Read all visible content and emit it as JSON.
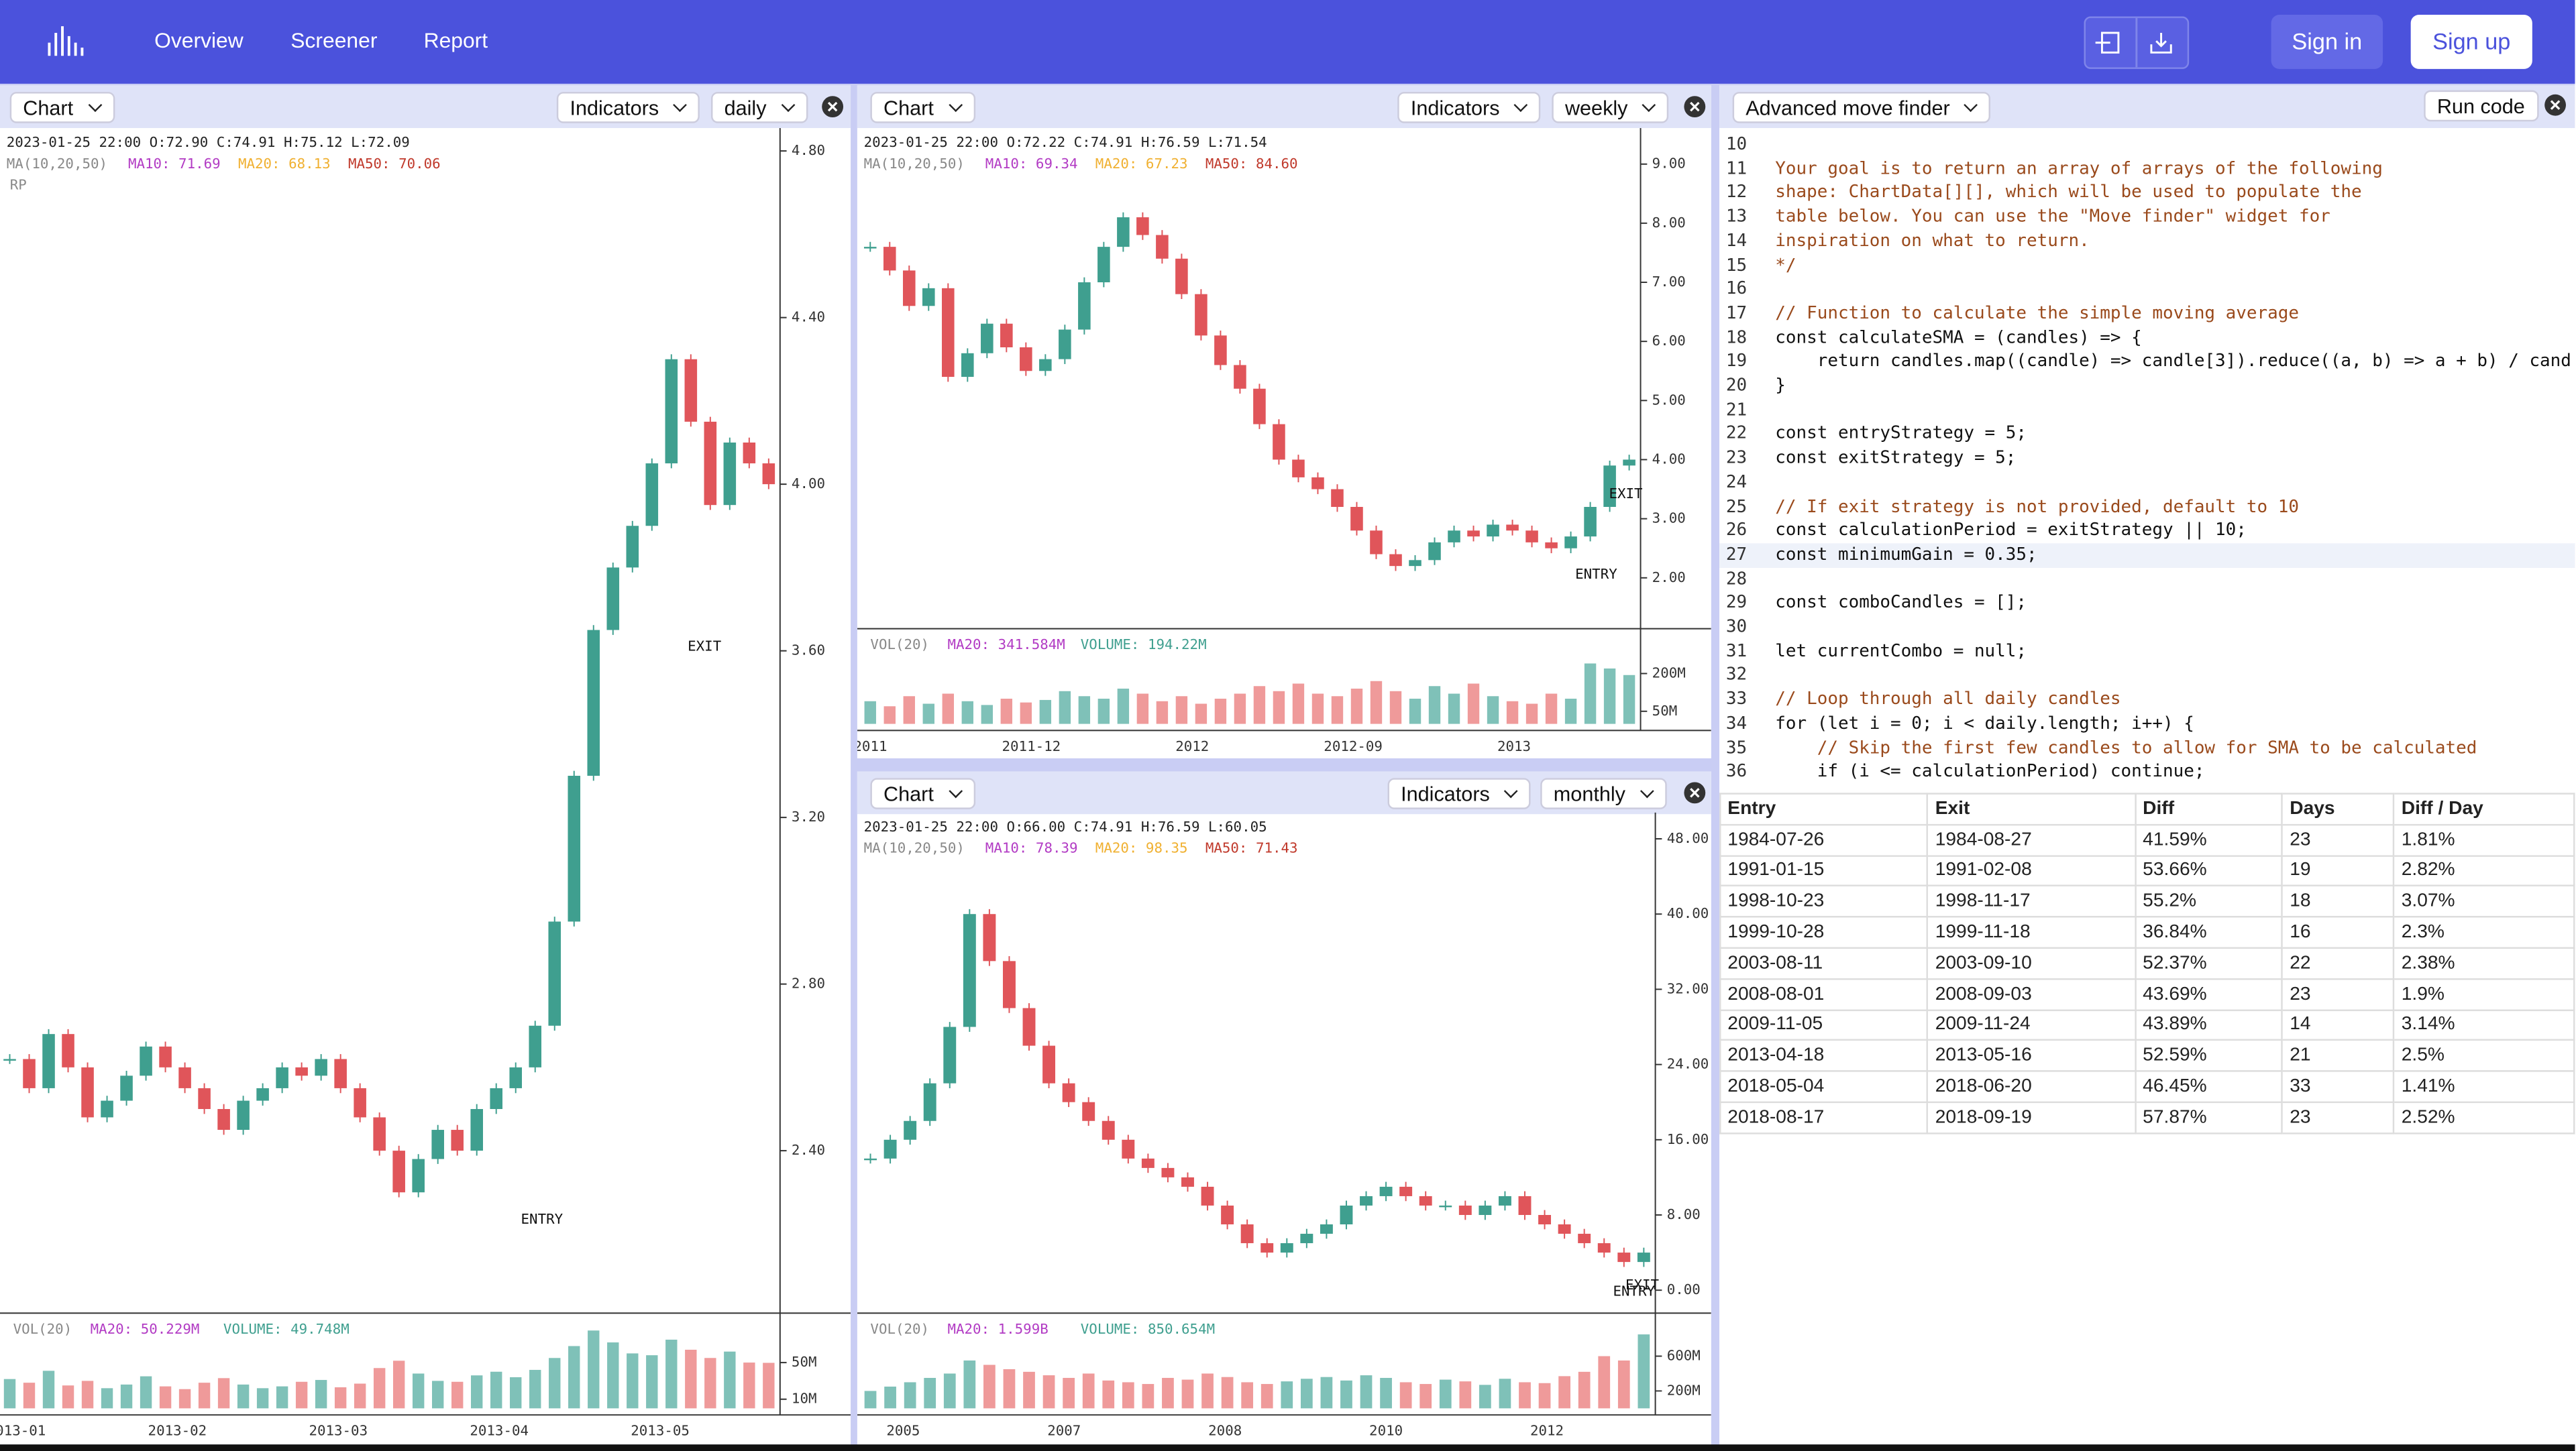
{
  "nav": {
    "items": [
      "Overview",
      "Screener",
      "Report"
    ],
    "sign_in": "Sign in",
    "sign_up": "Sign up"
  },
  "panels": [
    {
      "chart": "Chart",
      "indicators": "Indicators",
      "interval": "daily",
      "info": "2023-01-25 22:00  O:72.90  C:74.91  H:75.12  L:72.09",
      "ma": "MA(10,20,50)",
      "ma10": "MA10: 71.69",
      "ma20": "MA20: 68.13",
      "ma50": "MA50: 70.06",
      "extra": "RP",
      "ylim": [
        2.01,
        4.855
      ],
      "yticks": [
        {
          "value": 4.8,
          "label": "4.80"
        },
        {
          "value": 4.4,
          "label": "4.40"
        },
        {
          "value": 4.0,
          "label": "4.00"
        },
        {
          "value": 3.6,
          "label": "3.60"
        },
        {
          "value": 3.2,
          "label": "3.20"
        },
        {
          "value": 2.8,
          "label": "2.80"
        },
        {
          "value": 2.4,
          "label": "2.40"
        }
      ],
      "xticks": [
        "2013-01",
        "2013-02",
        "2013-03",
        "2013-04",
        "2013-05"
      ],
      "entry": "ENTRY",
      "exit": "EXIT",
      "closes": [
        2.62,
        2.55,
        2.68,
        2.6,
        2.48,
        2.52,
        2.58,
        2.65,
        2.6,
        2.55,
        2.5,
        2.45,
        2.52,
        2.55,
        2.6,
        2.58,
        2.62,
        2.55,
        2.48,
        2.4,
        2.3,
        2.38,
        2.45,
        2.4,
        2.5,
        2.55,
        2.6,
        2.7,
        2.95,
        3.3,
        3.65,
        3.8,
        3.9,
        4.05,
        4.3,
        4.15,
        3.95,
        4.1,
        4.05,
        4.0
      ],
      "vol": "VOL(20)",
      "vol_ma": "MA20: 50.229M",
      "volume": "VOLUME: 49.748M",
      "vlim": [
        0,
        95000000
      ],
      "vticks": [
        {
          "value": 50000000,
          "label": "50M"
        },
        {
          "value": 10000000,
          "label": "10M"
        }
      ],
      "volumes": [
        32000000.0,
        28000000.0,
        41000000.0,
        25000000.0,
        30000000.0,
        22000000.0,
        26000000.0,
        35000000.0,
        24000000.0,
        21000000.0,
        28000000.0,
        33000000.0,
        26000000.0,
        22000000.0,
        24000000.0,
        29000000.0,
        31000000.0,
        23000000.0,
        27000000.0,
        44000000.0,
        52000000.0,
        38000000.0,
        30000000.0,
        29000000.0,
        36000000.0,
        40000000.0,
        34000000.0,
        42000000.0,
        55000000.0,
        68000000.0,
        85000000.0,
        72000000.0,
        60000000.0,
        58000000.0,
        75000000.0,
        64000000.0,
        55000000.0,
        62000000.0,
        50000000.0,
        49700000.0
      ]
    },
    {
      "chart": "Chart",
      "indicators": "Indicators",
      "interval": "weekly",
      "info": "2023-01-25 22:00  O:72.22  C:74.91  H:76.59  L:71.54",
      "ma": "MA(10,20,50)",
      "ma10": "MA10: 69.34",
      "ma20": "MA20: 67.23",
      "ma50": "MA50: 84.60",
      "ylim": [
        1.14,
        9.61
      ],
      "yticks": [
        {
          "value": 9,
          "label": "9.00"
        },
        {
          "value": 8,
          "label": "8.00"
        },
        {
          "value": 7,
          "label": "7.00"
        },
        {
          "value": 6,
          "label": "6.00"
        },
        {
          "value": 5,
          "label": "5.00"
        },
        {
          "value": 4,
          "label": "4.00"
        },
        {
          "value": 3,
          "label": "3.00"
        },
        {
          "value": 2,
          "label": "2.00"
        }
      ],
      "xticks": [
        "2011",
        "2011-12",
        "2012",
        "2012-09",
        "2013"
      ],
      "entry": "ENTRY",
      "exit": "EXIT",
      "closes": [
        7.6,
        7.2,
        6.6,
        6.9,
        5.4,
        5.8,
        6.3,
        5.9,
        5.5,
        5.7,
        6.2,
        7.0,
        7.6,
        8.1,
        7.8,
        7.4,
        6.8,
        6.1,
        5.6,
        5.2,
        4.6,
        4.0,
        3.7,
        3.5,
        3.2,
        2.8,
        2.4,
        2.2,
        2.3,
        2.6,
        2.8,
        2.7,
        2.9,
        2.8,
        2.6,
        2.5,
        2.7,
        3.2,
        3.9,
        4.0
      ],
      "vol": "VOL(20)",
      "vol_ma": "MA20: 341.584M",
      "volume": "VOLUME: 194.22M",
      "vlim": [
        0,
        300000000
      ],
      "vticks": [
        {
          "value": 200000000,
          "label": "200M"
        },
        {
          "value": 50000000,
          "label": "50M"
        }
      ],
      "volumes": [
        90000000.0,
        70000000.0,
        110000000.0,
        80000000.0,
        120000000.0,
        90000000.0,
        75000000.0,
        100000000.0,
        85000000.0,
        95000000.0,
        130000000.0,
        110000000.0,
        100000000.0,
        140000000.0,
        120000000.0,
        90000000.0,
        110000000.0,
        80000000.0,
        100000000.0,
        120000000.0,
        150000000.0,
        130000000.0,
        160000000.0,
        120000000.0,
        110000000.0,
        140000000.0,
        170000000.0,
        130000000.0,
        100000000.0,
        150000000.0,
        120000000.0,
        160000000.0,
        110000000.0,
        90000000.0,
        80000000.0,
        120000000.0,
        100000000.0,
        240000000.0,
        220000000.0,
        194000000.0
      ]
    },
    {
      "chart": "Chart",
      "indicators": "Indicators",
      "interval": "monthly",
      "info": "2023-01-25 22:00  O:66.00  C:74.91  H:76.59  L:60.05",
      "ma": "MA(10,20,50)",
      "ma10": "MA10: 78.39",
      "ma20": "MA20: 98.35",
      "ma50": "MA50: 71.43",
      "ylim": [
        -2.44,
        50.8
      ],
      "yticks": [
        {
          "value": 48,
          "label": "48.00"
        },
        {
          "value": 40,
          "label": "40.00"
        },
        {
          "value": 32,
          "label": "32.00"
        },
        {
          "value": 24,
          "label": "24.00"
        },
        {
          "value": 16,
          "label": "16.00"
        },
        {
          "value": 8,
          "label": "8.00"
        },
        {
          "value": 0,
          "label": "0.00"
        }
      ],
      "xticks": [
        "2005",
        "2007",
        "2008",
        "2010",
        "2012"
      ],
      "entry": "ENTRY",
      "exit": "EXIT",
      "closes": [
        14,
        16,
        18,
        22,
        28,
        40,
        35,
        30,
        26,
        22,
        20,
        18,
        16,
        14,
        13,
        12,
        11,
        9,
        7,
        5,
        4,
        5,
        6,
        7,
        9,
        10,
        11,
        10,
        9,
        9,
        8,
        9,
        10,
        8,
        7,
        6,
        5,
        4,
        3,
        4
      ],
      "vol": "VOL(20)",
      "vol_ma": "MA20: 1.599B",
      "volume": "VOLUME: 850.654M",
      "vlim": [
        0,
        1000000000
      ],
      "vticks": [
        {
          "value": 600000000,
          "label": "600M"
        },
        {
          "value": 200000000,
          "label": "200M"
        }
      ],
      "volumes": [
        200000000.0,
        250000000.0,
        300000000.0,
        350000000.0,
        400000000.0,
        550000000.0,
        500000000.0,
        450000000.0,
        420000000.0,
        380000000.0,
        350000000.0,
        400000000.0,
        320000000.0,
        300000000.0,
        280000000.0,
        350000000.0,
        330000000.0,
        400000000.0,
        360000000.0,
        300000000.0,
        280000000.0,
        310000000.0,
        340000000.0,
        360000000.0,
        320000000.0,
        380000000.0,
        350000000.0,
        300000000.0,
        280000000.0,
        330000000.0,
        310000000.0,
        270000000.0,
        340000000.0,
        300000000.0,
        290000000.0,
        370000000.0,
        420000000.0,
        600000000.0,
        550000000.0,
        850000000.0
      ]
    }
  ],
  "editor": {
    "select": "Advanced move finder",
    "run": "Run code",
    "lines": [
      {
        "num": 10,
        "text": ""
      },
      {
        "num": 11,
        "text": "Your goal is to return an array of arrays of the following"
      },
      {
        "num": 12,
        "text": "shape: ChartData[][], which will be used to populate the"
      },
      {
        "num": 13,
        "text": "table below. You can use the \"Move finder\" widget for"
      },
      {
        "num": 14,
        "text": "inspiration on what to return."
      },
      {
        "num": 15,
        "text": "*/"
      },
      {
        "num": 16,
        "text": ""
      },
      {
        "num": 17,
        "text": "// Function to calculate the simple moving average"
      },
      {
        "num": 18,
        "text": "const calculateSMA = (candles) => {"
      },
      {
        "num": 19,
        "text": "    return candles.map((candle) => candle[3]).reduce((a, b) => a + b) / cand"
      },
      {
        "num": 20,
        "text": "}"
      },
      {
        "num": 21,
        "text": ""
      },
      {
        "num": 22,
        "text": "const entryStrategy = 5;"
      },
      {
        "num": 23,
        "text": "const exitStrategy = 5;"
      },
      {
        "num": 24,
        "text": ""
      },
      {
        "num": 25,
        "text": "// If exit strategy is not provided, default to 10"
      },
      {
        "num": 26,
        "text": "const calculationPeriod = exitStrategy || 10;"
      },
      {
        "num": 27,
        "text": "const minimumGain = 0.35;"
      },
      {
        "num": 28,
        "text": ""
      },
      {
        "num": 29,
        "text": "const comboCandles = [];"
      },
      {
        "num": 30,
        "text": ""
      },
      {
        "num": 31,
        "text": "let currentCombo = null;"
      },
      {
        "num": 32,
        "text": ""
      },
      {
        "num": 33,
        "text": "// Loop through all daily candles"
      },
      {
        "num": 34,
        "text": "for (let i = 0; i < daily.length; i++) {"
      },
      {
        "num": 35,
        "text": "    // Skip the first few candles to allow for SMA to be calculated"
      },
      {
        "num": 36,
        "text": "    if (i <= calculationPeriod) continue;"
      }
    ]
  },
  "table": {
    "header": [
      "Entry",
      "Exit",
      "Diff",
      "Days",
      "Diff / Day"
    ],
    "rows": [
      [
        "1984-07-26",
        "1984-08-27",
        "41.59%",
        "23",
        "1.81%"
      ],
      [
        "1991-01-15",
        "1991-02-08",
        "53.66%",
        "19",
        "2.82%"
      ],
      [
        "1998-10-23",
        "1998-11-17",
        "55.2%",
        "18",
        "3.07%"
      ],
      [
        "1999-10-28",
        "1999-11-18",
        "36.84%",
        "16",
        "2.3%"
      ],
      [
        "2003-08-11",
        "2003-09-10",
        "52.37%",
        "22",
        "2.38%"
      ],
      [
        "2008-08-01",
        "2008-09-03",
        "43.69%",
        "23",
        "1.9%"
      ],
      [
        "2009-11-05",
        "2009-11-24",
        "43.89%",
        "14",
        "3.14%"
      ],
      [
        "2013-04-18",
        "2013-05-16",
        "52.59%",
        "21",
        "2.5%"
      ],
      [
        "2018-05-04",
        "2018-06-20",
        "46.45%",
        "33",
        "1.41%"
      ],
      [
        "2018-08-17",
        "2018-09-19",
        "57.87%",
        "23",
        "2.52%"
      ]
    ]
  }
}
